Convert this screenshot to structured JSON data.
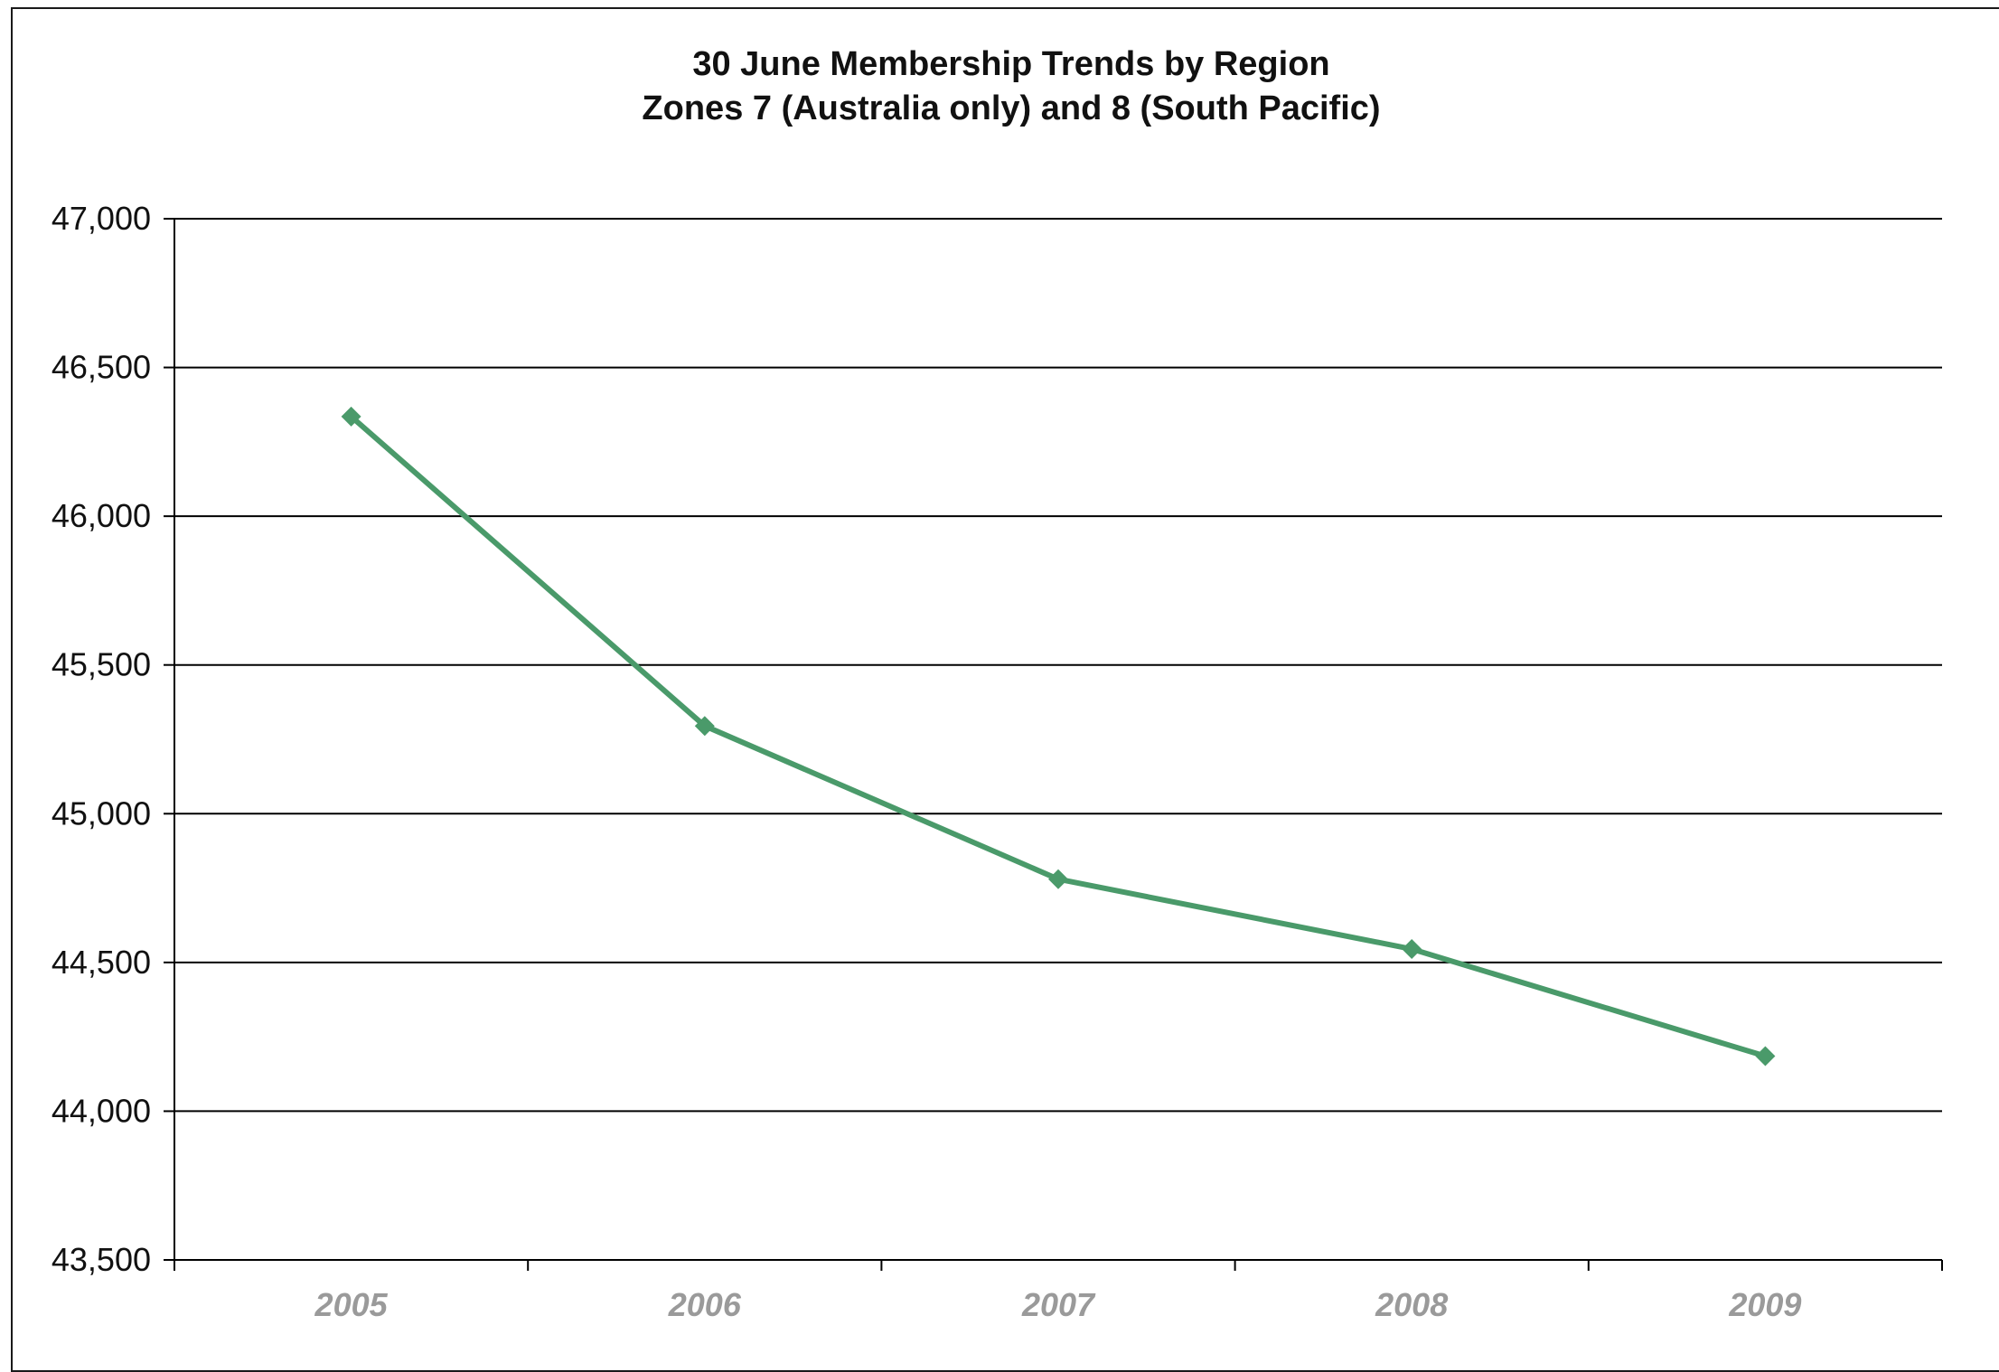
{
  "chart_data": {
    "type": "line",
    "title": "30 June Membership Trends by Region",
    "subtitle": "Zones 7 (Australia only) and 8 (South Pacific)",
    "xlabel": "",
    "ylabel": "",
    "categories": [
      "2005",
      "2006",
      "2007",
      "2008",
      "2009"
    ],
    "series": [
      {
        "values": [
          46335,
          45295,
          44780,
          44545,
          44185
        ],
        "color": "#4a9a6a",
        "marker": "diamond"
      }
    ],
    "ylim": [
      43500,
      47000
    ],
    "yticks": [
      43500,
      44000,
      44500,
      45000,
      45500,
      46000,
      46500,
      47000
    ],
    "ytick_labels": [
      "43,500",
      "44,000",
      "44,500",
      "45,000",
      "45,500",
      "46,000",
      "46,500",
      "47,000"
    ],
    "grid": true,
    "legend": "none"
  }
}
